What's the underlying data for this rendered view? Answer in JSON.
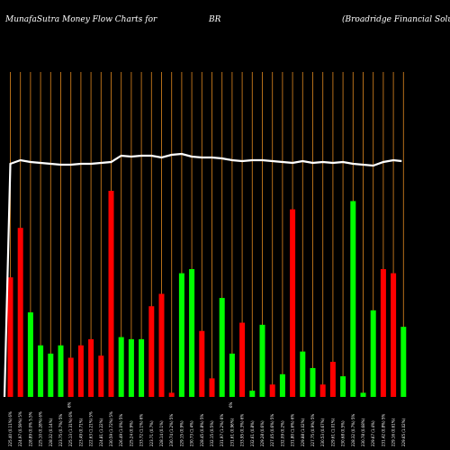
{
  "header": {
    "left": "MunafaSutra  Money Flow  Charts for",
    "center": "BR",
    "right": "(Broadridge   Financial Solutions,"
  },
  "colors": {
    "background": "#000000",
    "grid": "#c97a1c",
    "up": "#00ff00",
    "down": "#ff0000",
    "line": "#ffffff"
  },
  "chart_data": {
    "type": "bar",
    "series": [
      {
        "values": [
          58,
          82,
          41,
          25,
          21,
          25,
          19,
          25,
          28,
          20,
          100,
          29,
          28,
          28,
          44,
          50,
          2,
          60,
          62,
          32,
          9,
          48,
          21,
          36,
          3,
          35,
          6,
          11,
          91,
          22,
          14,
          6,
          17,
          10,
          95,
          2,
          42,
          62,
          60,
          34
        ],
        "direction": [
          "down",
          "down",
          "up",
          "up",
          "up",
          "up",
          "down",
          "down",
          "down",
          "down",
          "down",
          "up",
          "up",
          "up",
          "down",
          "down",
          "down",
          "up",
          "up",
          "down",
          "down",
          "up",
          "up",
          "down",
          "up",
          "up",
          "down",
          "up",
          "down",
          "up",
          "up",
          "down",
          "down",
          "up",
          "up",
          "up",
          "up",
          "down",
          "down",
          "up"
        ]
      },
      {
        "line_values": [
          57,
          6,
          8,
          9,
          10,
          11,
          11,
          10,
          10,
          9,
          8,
          1,
          2,
          1,
          1,
          3,
          0,
          -1,
          2,
          3,
          3,
          4,
          6,
          7,
          6,
          6,
          7,
          8,
          9,
          7,
          9,
          8,
          9,
          8,
          10,
          11,
          12,
          8,
          6,
          7
        ]
      }
    ],
    "x_labels": [
      "225.40 (0.11%) 6%",
      "224.97 (0.59%) 5%",
      "228.89 (0.0% 5.5%",
      "225.10 (0.28%) 6%",
      "228.32 (0.14%)",
      "223.75 (0.7%) 5%",
      "225.13 (1.31%) 6%",
      "223.49 (0.71%)",
      "222.63 (1.21%) 5%",
      "224.81 (1.22%)",
      "230.59 (1.72%) 5%",
      "226.49 (1.0%) 5%",
      "225.24 (0.9%)",
      "233.72 (1.1%) 6%",
      "223.71 (0.7%)",
      "228.14 (0.1%)",
      "230.74 (1.2%) 5%",
      "229.15 (0.9%)",
      "230.73 (1.4%)",
      "228.45 (0.8%) 5%",
      "232.15 (0.5%)",
      "231.97 (1.2%) 6%",
      "231.61 (0.96%)",
      "233.95 (0.3%) 6%",
      "232.61 (0.8%)",
      "229.28 (0.6%)",
      "227.05 (0.6%) 5%",
      "232.09 (0.2%)",
      "231.80 (1.6%) 6%",
      "229.88 (1.02%)",
      "227.75 (0.9%) 5%",
      "230.53 (0.67%)",
      "229.61 (1.01%)",
      "230.68 (0.5%)",
      "228.32 (0.7%) 5%",
      "230.78 (0.68%)",
      "229.67 (1.4%)",
      "231.42 (0.8%) 5%",
      "229.16 (0.61%)",
      "229.65 (1.02%)"
    ],
    "marker_label": "6%"
  }
}
